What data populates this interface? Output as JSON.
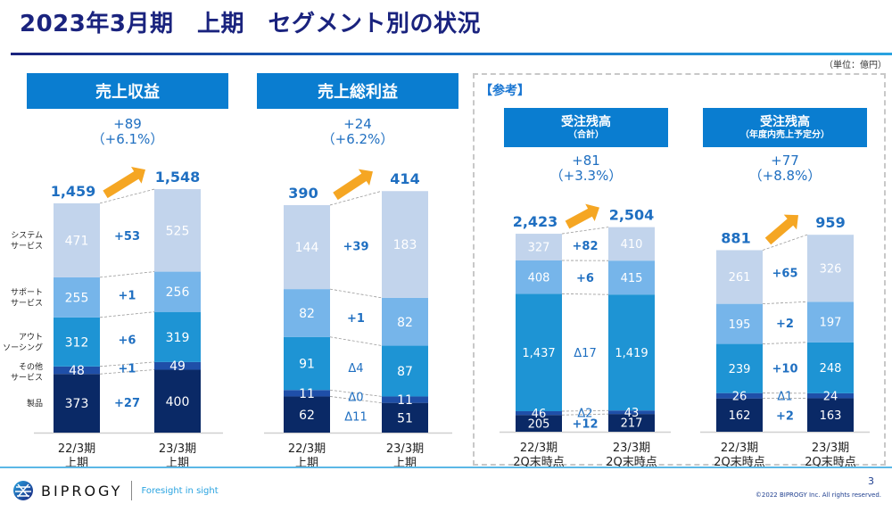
{
  "title": "2023年3月期　上期　セグメント別の状況",
  "unit": "（単位：億円）",
  "reference_label": "【参考】",
  "footer": {
    "brand": "BIPROGY",
    "tagline": "Foresight in sight",
    "page": "3",
    "copyright": "©2022 BIPROGY Inc. All rights reserved."
  },
  "colors": {
    "header_bg": "#0a7dd0",
    "title": "#1a237e",
    "accent_text": "#1f6fc1",
    "arrow": "#f5a623",
    "seg_system": "#c2d4ec",
    "seg_support": "#76b5ea",
    "seg_outsourcing": "#1e94d4",
    "seg_other": "#1f4fa8",
    "seg_product": "#0a2966"
  },
  "chart_data": [
    {
      "type": "bar",
      "stacked": true,
      "title": "売上収益",
      "change": "+89",
      "change_pct": "（+6.1%）",
      "categories": [
        "22/3期\n上期",
        "23/3期\n上期"
      ],
      "category_lines": [
        [
          "22/3期",
          "上期"
        ],
        [
          "23/3期",
          "上期"
        ]
      ],
      "totals": [
        "1,459",
        "1,548"
      ],
      "segment_labels": [
        [
          "製品"
        ],
        [
          "その他",
          "サービス"
        ],
        [
          "アウト",
          "ソーシング"
        ],
        [
          "サポート",
          "サービス"
        ],
        [
          "システム",
          "サービス"
        ]
      ],
      "series": [
        {
          "name": "製品",
          "values": [
            373,
            400
          ],
          "delta": "+27"
        },
        {
          "name": "その他サービス",
          "values": [
            48,
            49
          ],
          "delta": "+1"
        },
        {
          "name": "アウトソーシング",
          "values": [
            312,
            319
          ],
          "delta": "+6"
        },
        {
          "name": "サポートサービス",
          "values": [
            255,
            256
          ],
          "delta": "+1"
        },
        {
          "name": "システムサービス",
          "values": [
            471,
            525
          ],
          "delta": "+53"
        }
      ]
    },
    {
      "type": "bar",
      "stacked": true,
      "title": "売上総利益",
      "change": "+24",
      "change_pct": "（+6.2%）",
      "categories": [
        "22/3期\n上期",
        "23/3期\n上期"
      ],
      "category_lines": [
        [
          "22/3期",
          "上期"
        ],
        [
          "23/3期",
          "上期"
        ]
      ],
      "totals": [
        "390",
        "414"
      ],
      "series": [
        {
          "name": "製品",
          "values": [
            62,
            51
          ],
          "delta": "Δ11"
        },
        {
          "name": "その他サービス",
          "values": [
            11,
            11
          ],
          "delta": "Δ0"
        },
        {
          "name": "アウトソーシング",
          "values": [
            91,
            87
          ],
          "delta": "Δ4"
        },
        {
          "name": "サポートサービス",
          "values": [
            82,
            82
          ],
          "delta": "+1"
        },
        {
          "name": "システムサービス",
          "values": [
            144,
            183
          ],
          "delta": "+39"
        }
      ]
    },
    {
      "type": "bar",
      "stacked": true,
      "title": "受注残高",
      "subtitle": "（合計）",
      "change": "+81",
      "change_pct": "（+3.3%）",
      "categories": [
        "22/3期\n2Q末時点",
        "23/3期\n2Q末時点"
      ],
      "category_lines": [
        [
          "22/3期",
          "2Q末時点"
        ],
        [
          "23/3期",
          "2Q末時点"
        ]
      ],
      "totals": [
        "2,423",
        "2,504"
      ],
      "series": [
        {
          "name": "製品",
          "values": [
            205,
            217
          ],
          "delta": "+12"
        },
        {
          "name": "その他サービス",
          "values": [
            46,
            43
          ],
          "delta": "Δ2"
        },
        {
          "name": "アウトソーシング",
          "values": [
            1437,
            1419
          ],
          "delta": "Δ17"
        },
        {
          "name": "サポートサービス",
          "values": [
            408,
            415
          ],
          "delta": "+6"
        },
        {
          "name": "システムサービス",
          "values": [
            327,
            410
          ],
          "delta": "+82"
        }
      ]
    },
    {
      "type": "bar",
      "stacked": true,
      "title": "受注残高",
      "subtitle": "（年度内売上予定分）",
      "change": "+77",
      "change_pct": "（+8.8%）",
      "categories": [
        "22/3期\n2Q末時点",
        "23/3期\n2Q末時点"
      ],
      "category_lines": [
        [
          "22/3期",
          "2Q末時点"
        ],
        [
          "23/3期",
          "2Q末時点"
        ]
      ],
      "totals": [
        "881",
        "959"
      ],
      "series": [
        {
          "name": "製品",
          "values": [
            162,
            163
          ],
          "delta": "+2"
        },
        {
          "name": "その他サービス",
          "values": [
            26,
            24
          ],
          "delta": "Δ1"
        },
        {
          "name": "アウトソーシング",
          "values": [
            239,
            248
          ],
          "delta": "+10"
        },
        {
          "name": "サポートサービス",
          "values": [
            195,
            197
          ],
          "delta": "+2"
        },
        {
          "name": "システムサービス",
          "values": [
            261,
            326
          ],
          "delta": "+65"
        }
      ]
    }
  ]
}
